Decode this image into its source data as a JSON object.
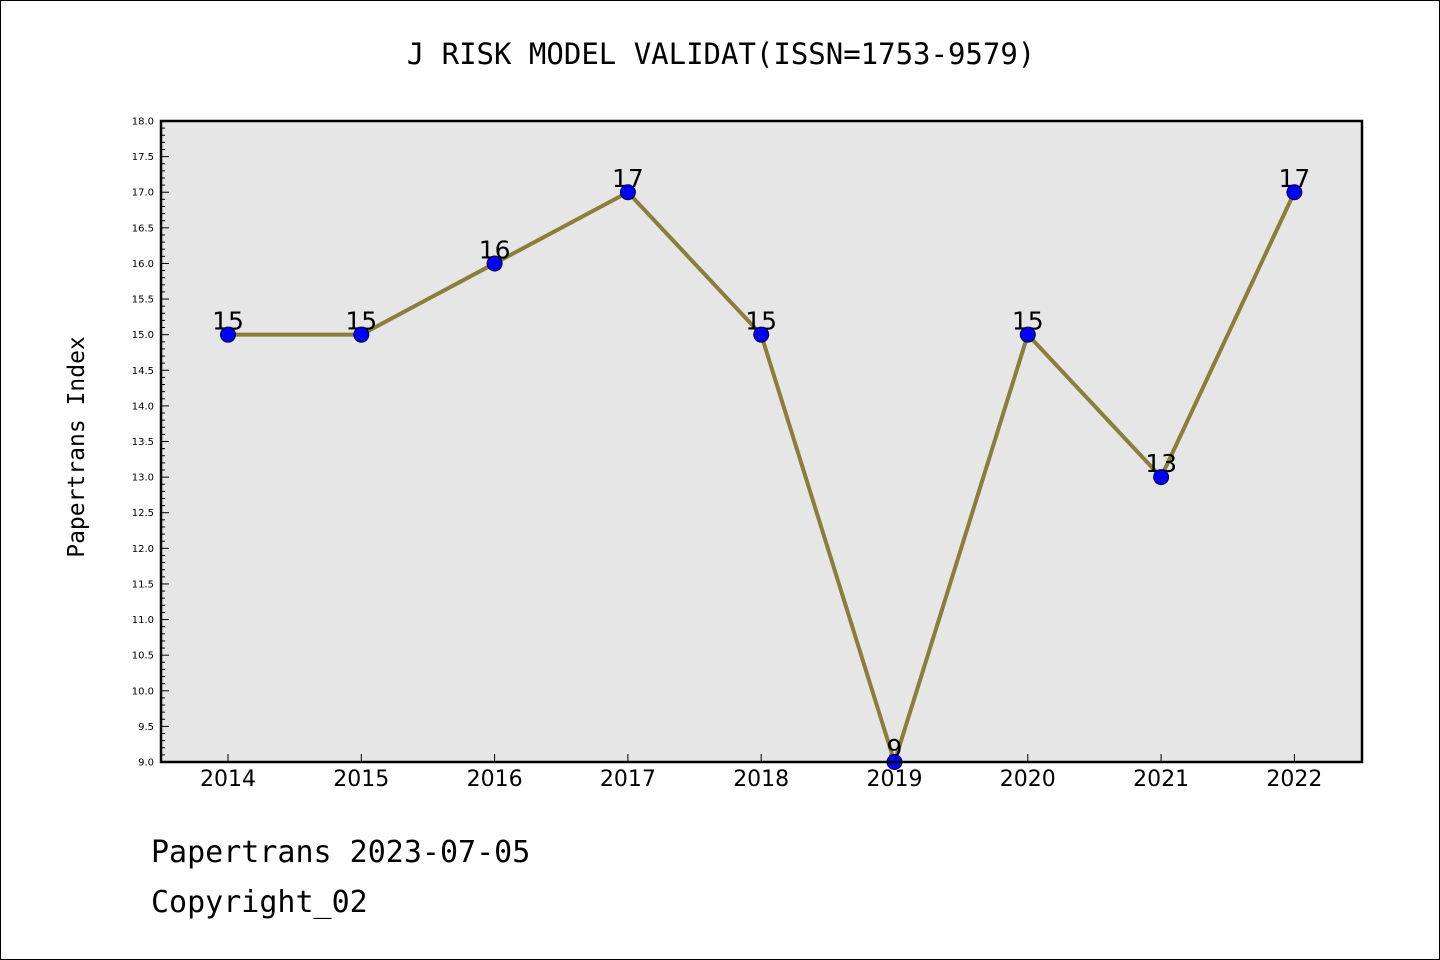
{
  "footer": {
    "date_line": "Papertrans 2023-07-05",
    "copyright": "Copyright_02"
  },
  "colors": {
    "line": "#8b7d3a",
    "marker": "#0000ff",
    "plot_background": "#e6e6e6"
  },
  "chart_data": {
    "type": "line",
    "title": "J RISK MODEL VALIDAT(ISSN=1753-9579)",
    "xlabel": "",
    "ylabel": "Papertrans Index",
    "categories": [
      "2014",
      "2015",
      "2016",
      "2017",
      "2018",
      "2019",
      "2020",
      "2021",
      "2022"
    ],
    "series": [
      {
        "values": [
          15,
          15,
          16,
          17,
          15,
          9,
          15,
          13,
          17
        ]
      }
    ],
    "ylim": [
      9.0,
      18.0
    ],
    "yticks": [
      "9.0",
      "9.5",
      "10.0",
      "10.5",
      "11.0",
      "11.5",
      "12.0",
      "12.5",
      "13.0",
      "13.5",
      "14.0",
      "14.5",
      "15.0",
      "15.5",
      "16.0",
      "16.5",
      "17.0",
      "17.5",
      "18.0"
    ],
    "grid": false,
    "legend": "none"
  }
}
